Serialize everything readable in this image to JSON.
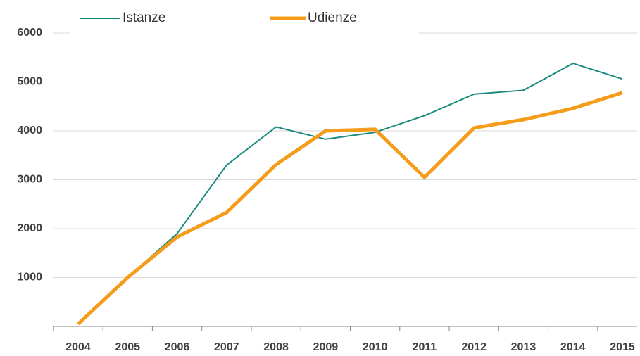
{
  "chart_data": {
    "type": "line",
    "categories": [
      "2004",
      "2005",
      "2006",
      "2007",
      "2008",
      "2009",
      "2010",
      "2011",
      "2012",
      "2013",
      "2014",
      "2015"
    ],
    "series": [
      {
        "name": "Istanze",
        "color": "#1a8a7e",
        "values": [
          50,
          1000,
          1900,
          3300,
          4080,
          3830,
          3970,
          4310,
          4750,
          4830,
          5380,
          5060
        ]
      },
      {
        "name": "Udienze",
        "color": "#f59c1a",
        "values": [
          50,
          1000,
          1830,
          2330,
          3310,
          4000,
          4030,
          3050,
          4060,
          4230,
          4460,
          4780
        ]
      }
    ],
    "ylim": [
      0,
      6000
    ],
    "yticks": [
      1000,
      2000,
      3000,
      4000,
      5000,
      6000
    ],
    "grid": true
  }
}
